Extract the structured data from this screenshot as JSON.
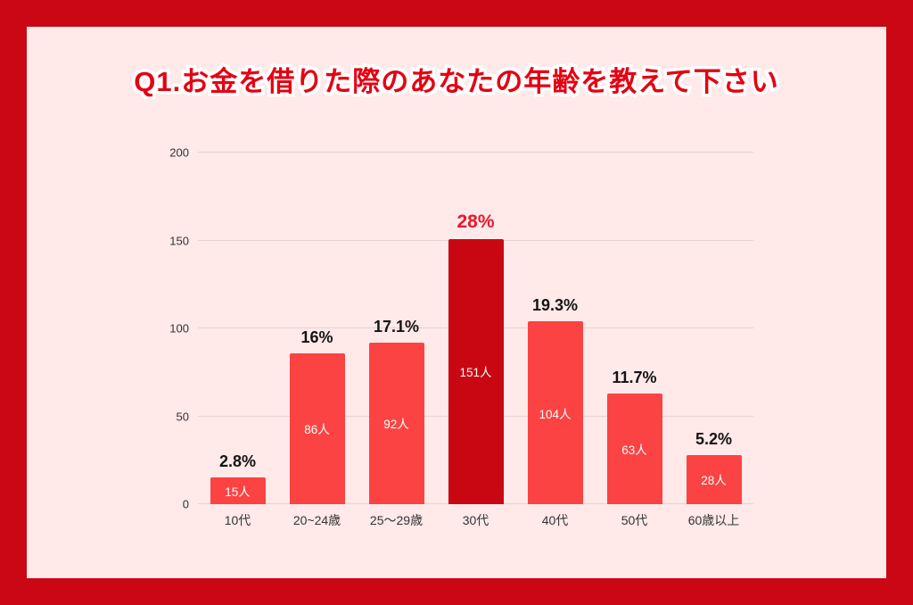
{
  "frame": {
    "border_color": "#cb0615",
    "background_color": "#ffe9e9"
  },
  "title": "Q1.お金を借りた際のあなたの年齢を教えて下さい",
  "title_color": "#e60012",
  "chart_data": {
    "type": "bar",
    "title": "Q1.お金を借りた際のあなたの年齢を教えて下さい",
    "categories": [
      "10代",
      "20~24歳",
      "25〜29歳",
      "30代",
      "40代",
      "50代",
      "60歳以上"
    ],
    "values": [
      15,
      86,
      92,
      151,
      104,
      63,
      28
    ],
    "count_labels": [
      "15人",
      "86人",
      "92人",
      "151人",
      "104人",
      "63人",
      "28人"
    ],
    "percent_labels": [
      "2.8%",
      "16%",
      "17.1%",
      "28%",
      "19.3%",
      "11.7%",
      "5.2%"
    ],
    "highlight_index": 3,
    "xlabel": "",
    "ylabel": "",
    "ylim": [
      0,
      200
    ],
    "yticks": [
      0,
      50,
      100,
      150,
      200
    ],
    "grid": true,
    "legend": "none",
    "bar_color": "#fb4343",
    "highlight_bar_color": "#c90712",
    "percent_color": "#141414",
    "highlight_percent_color": "#e8192c",
    "count_label_color": "#ffffff"
  }
}
